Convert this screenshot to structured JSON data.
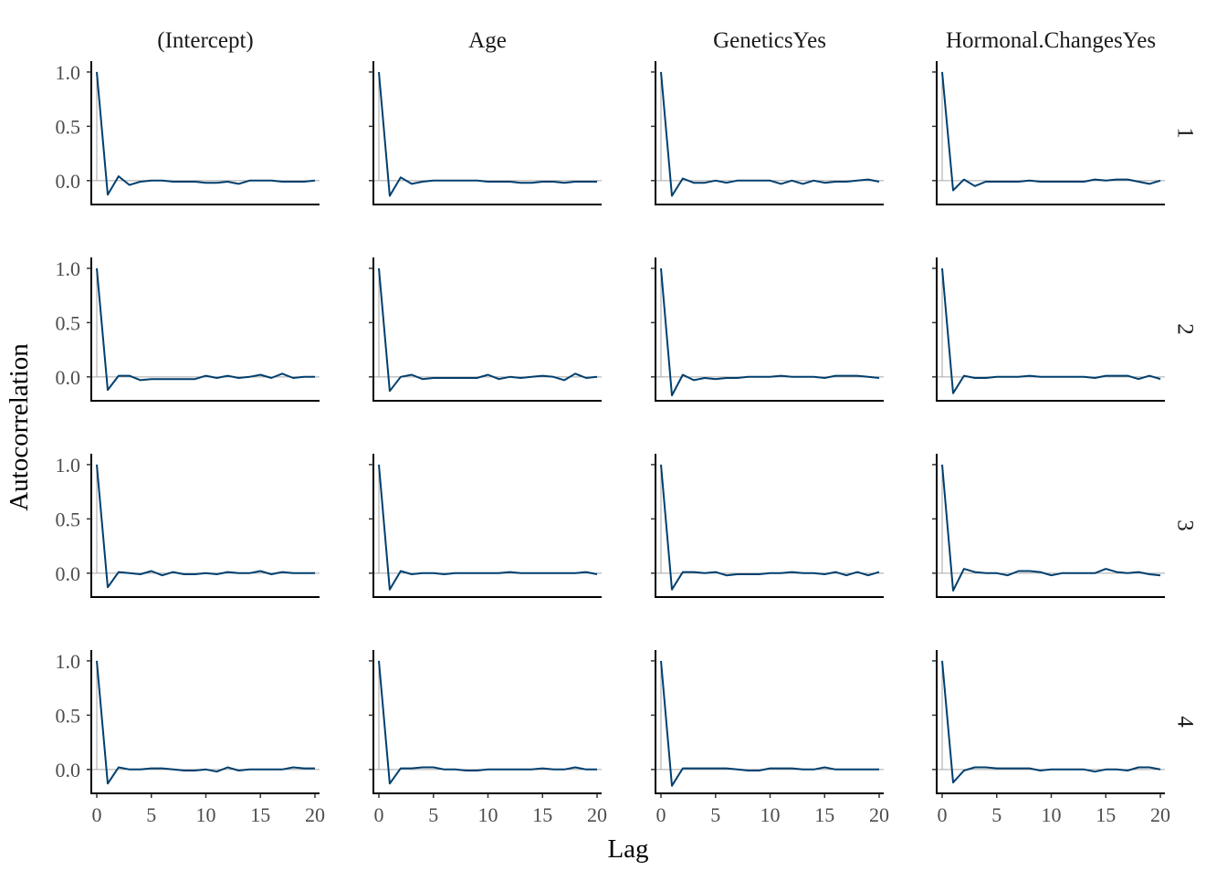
{
  "chart_data": {
    "type": "line",
    "xlabel": "Lag",
    "ylabel": "Autocorrelation",
    "columns": [
      "(Intercept)",
      "Age",
      "GeneticsYes",
      "Hormonal.ChangesYes"
    ],
    "rows": [
      "1",
      "2",
      "3",
      "4"
    ],
    "xlim": [
      0,
      20
    ],
    "ylim": [
      -0.22,
      1.1
    ],
    "x_ticks": [
      0,
      5,
      10,
      15,
      20
    ],
    "y_ticks": [
      0.0,
      0.5,
      1.0
    ],
    "x_tick_labels": [
      "0",
      "5",
      "10",
      "15",
      "20"
    ],
    "y_tick_labels": [
      "0.0",
      "0.5",
      "1.0"
    ],
    "lags": [
      0,
      1,
      2,
      3,
      4,
      5,
      6,
      7,
      8,
      9,
      10,
      11,
      12,
      13,
      14,
      15,
      16,
      17,
      18,
      19,
      20
    ],
    "line_color": "#003f6e",
    "reference_line_color": "#a6a6a6",
    "grid": false,
    "panels": [
      [
        [
          1.0,
          -0.13,
          0.04,
          -0.04,
          -0.01,
          0.0,
          0.0,
          -0.01,
          -0.01,
          -0.01,
          -0.02,
          -0.02,
          -0.01,
          -0.03,
          0.0,
          0.0,
          0.0,
          -0.01,
          -0.01,
          -0.01,
          0.0
        ],
        [
          1.0,
          -0.14,
          0.03,
          -0.03,
          -0.01,
          0.0,
          0.0,
          0.0,
          0.0,
          0.0,
          -0.01,
          -0.01,
          -0.01,
          -0.02,
          -0.02,
          -0.01,
          -0.01,
          -0.02,
          -0.01,
          -0.01,
          -0.01
        ],
        [
          1.0,
          -0.14,
          0.02,
          -0.02,
          -0.02,
          0.0,
          -0.02,
          0.0,
          0.0,
          0.0,
          0.0,
          -0.03,
          0.0,
          -0.03,
          0.0,
          -0.02,
          -0.01,
          -0.01,
          0.0,
          0.01,
          -0.01
        ],
        [
          1.0,
          -0.09,
          0.01,
          -0.05,
          -0.01,
          -0.01,
          -0.01,
          -0.01,
          0.0,
          -0.01,
          -0.01,
          -0.01,
          -0.01,
          -0.01,
          0.01,
          0.0,
          0.01,
          0.01,
          -0.01,
          -0.03,
          0.0
        ]
      ],
      [
        [
          1.0,
          -0.12,
          0.01,
          0.01,
          -0.03,
          -0.02,
          -0.02,
          -0.02,
          -0.02,
          -0.02,
          0.01,
          -0.01,
          0.01,
          -0.01,
          0.0,
          0.02,
          -0.01,
          0.03,
          -0.01,
          0.0,
          0.0
        ],
        [
          1.0,
          -0.13,
          0.0,
          0.02,
          -0.02,
          -0.01,
          -0.01,
          -0.01,
          -0.01,
          -0.01,
          0.02,
          -0.02,
          0.0,
          -0.01,
          0.0,
          0.01,
          0.0,
          -0.03,
          0.03,
          -0.01,
          0.0
        ],
        [
          1.0,
          -0.17,
          0.02,
          -0.03,
          -0.01,
          -0.02,
          -0.01,
          -0.01,
          0.0,
          0.0,
          0.0,
          0.01,
          0.0,
          0.0,
          0.0,
          -0.01,
          0.01,
          0.01,
          0.01,
          0.0,
          -0.01
        ],
        [
          1.0,
          -0.15,
          0.01,
          -0.01,
          -0.01,
          0.0,
          0.0,
          0.0,
          0.01,
          0.0,
          0.0,
          0.0,
          0.0,
          0.0,
          -0.01,
          0.01,
          0.01,
          0.01,
          -0.02,
          0.01,
          -0.02
        ]
      ],
      [
        [
          1.0,
          -0.13,
          0.01,
          0.0,
          -0.01,
          0.02,
          -0.02,
          0.01,
          -0.01,
          -0.01,
          0.0,
          -0.01,
          0.01,
          0.0,
          0.0,
          0.02,
          -0.01,
          0.01,
          0.0,
          0.0,
          0.0
        ],
        [
          1.0,
          -0.15,
          0.02,
          -0.01,
          0.0,
          0.0,
          -0.01,
          0.0,
          0.0,
          0.0,
          0.0,
          0.0,
          0.01,
          0.0,
          0.0,
          0.0,
          0.0,
          0.0,
          0.0,
          0.01,
          -0.01
        ],
        [
          1.0,
          -0.15,
          0.01,
          0.01,
          0.0,
          0.01,
          -0.02,
          -0.01,
          -0.01,
          -0.01,
          0.0,
          0.0,
          0.01,
          0.0,
          0.0,
          -0.01,
          0.01,
          -0.02,
          0.01,
          -0.02,
          0.01
        ],
        [
          1.0,
          -0.16,
          0.04,
          0.01,
          0.0,
          0.0,
          -0.02,
          0.02,
          0.02,
          0.01,
          -0.02,
          0.0,
          0.0,
          0.0,
          0.0,
          0.04,
          0.01,
          0.0,
          0.01,
          -0.01,
          -0.02
        ]
      ],
      [
        [
          1.0,
          -0.13,
          0.02,
          0.0,
          0.0,
          0.01,
          0.01,
          0.0,
          -0.01,
          -0.01,
          0.0,
          -0.02,
          0.02,
          -0.01,
          0.0,
          0.0,
          0.0,
          0.0,
          0.02,
          0.01,
          0.01
        ],
        [
          1.0,
          -0.13,
          0.01,
          0.01,
          0.02,
          0.02,
          0.0,
          0.0,
          -0.01,
          -0.01,
          0.0,
          0.0,
          0.0,
          0.0,
          0.0,
          0.01,
          0.0,
          0.0,
          0.02,
          0.0,
          0.0
        ],
        [
          1.0,
          -0.15,
          0.01,
          0.01,
          0.01,
          0.01,
          0.01,
          0.0,
          -0.01,
          -0.01,
          0.01,
          0.01,
          0.01,
          0.0,
          0.0,
          0.02,
          0.0,
          0.0,
          0.0,
          0.0,
          0.0
        ],
        [
          1.0,
          -0.12,
          -0.01,
          0.02,
          0.02,
          0.01,
          0.01,
          0.01,
          0.01,
          -0.01,
          0.0,
          0.0,
          0.0,
          0.0,
          -0.02,
          0.0,
          0.0,
          -0.01,
          0.02,
          0.02,
          0.0
        ]
      ]
    ]
  }
}
